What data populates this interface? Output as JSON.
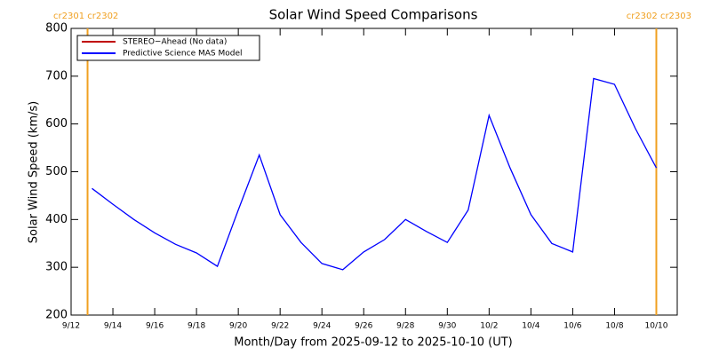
{
  "chart_data": {
    "type": "line",
    "title": "Solar Wind Speed Comparisons",
    "x_label": "Month/Day from 2025-09-12 to 2025-10-10 (UT)",
    "y_label": "Solar Wind Speed (km/s)",
    "annotations": [
      "cr2301 cr2302",
      "cr2302 cr2303"
    ],
    "annotation_color": "#f0a020",
    "legend": "upper left",
    "x": [
      "2025-09-13",
      "2025-09-14",
      "2025-09-15",
      "2025-09-16",
      "2025-09-17",
      "2025-09-18",
      "2025-09-19",
      "2025-09-20",
      "2025-09-21",
      "2025-09-22",
      "2025-09-23",
      "2025-09-24",
      "2025-09-25",
      "2025-09-26",
      "2025-09-27",
      "2025-09-28",
      "2025-09-29",
      "2025-09-30",
      "2025-10-01",
      "2025-10-02",
      "2025-10-03",
      "2025-10-04",
      "2025-10-05",
      "2025-10-06",
      "2025-10-07",
      "2025-10-08",
      "2025-10-09",
      "2025-10-10"
    ],
    "series": [
      {
        "name": "STEREO−Ahead (No data)",
        "color": "#c00000",
        "values": [
          null,
          null,
          null,
          null,
          null,
          null,
          null,
          null,
          null,
          null,
          null,
          null,
          null,
          null,
          null,
          null,
          null,
          null,
          null,
          null,
          null,
          null,
          null,
          null,
          null,
          null,
          null,
          null
        ]
      },
      {
        "name": "Predictive Science MAS Model",
        "color": "#0000ff",
        "values": [
          465,
          432,
          400,
          372,
          348,
          330,
          302,
          420,
          535,
          410,
          352,
          308,
          295,
          332,
          358,
          400,
          375,
          352,
          420,
          618,
          508,
          410,
          350,
          332,
          695,
          683,
          590,
          508
        ]
      }
    ],
    "xlim": [
      "2025-09-12",
      "2025-10-11"
    ],
    "xticks": [
      {
        "value": "2025-09-12",
        "label": "9/12"
      },
      {
        "value": "2025-09-14",
        "label": "9/14"
      },
      {
        "value": "2025-09-16",
        "label": "9/16"
      },
      {
        "value": "2025-09-18",
        "label": "9/18"
      },
      {
        "value": "2025-09-20",
        "label": "9/20"
      },
      {
        "value": "2025-09-22",
        "label": "9/22"
      },
      {
        "value": "2025-09-24",
        "label": "9/24"
      },
      {
        "value": "2025-09-26",
        "label": "9/26"
      },
      {
        "value": "2025-09-28",
        "label": "9/28"
      },
      {
        "value": "2025-09-30",
        "label": "9/30"
      },
      {
        "value": "2025-10-02",
        "label": "10/2"
      },
      {
        "value": "2025-10-04",
        "label": "10/4"
      },
      {
        "value": "2025-10-06",
        "label": "10/6"
      },
      {
        "value": "2025-10-08",
        "label": "10/8"
      },
      {
        "value": "2025-10-10",
        "label": "10/10"
      }
    ],
    "ylim": [
      200,
      800
    ],
    "yticks": [
      200,
      300,
      400,
      500,
      600,
      700,
      800
    ]
  }
}
